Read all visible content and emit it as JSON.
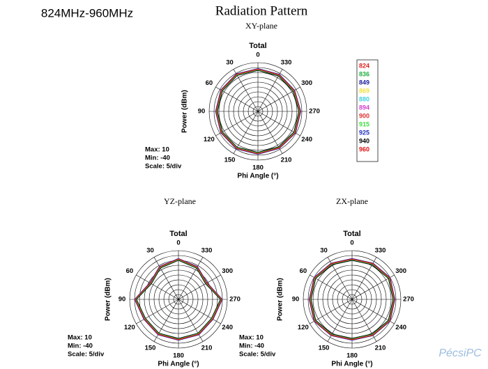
{
  "heading": "824MHz-960MHz",
  "title": "Radiation Pattern",
  "watermark": "PécsiPC",
  "chart_data": [
    {
      "type": "polar",
      "subtitle": "XY-plane",
      "title": "Total",
      "ylabel": "Power  (dBm)",
      "xlabel": "Phi Angle  (°)",
      "annotations": [
        "Max: 10",
        "Min: -40",
        "Scale: 5/div"
      ],
      "legend": true,
      "theta": [
        0,
        30,
        60,
        90,
        120,
        150,
        180,
        210,
        240,
        270,
        300,
        330
      ],
      "rlim": [
        -40,
        10
      ],
      "rticks": [
        -40,
        -35,
        -30,
        -25,
        -20,
        -15,
        -10,
        -5,
        0,
        5,
        10
      ],
      "series": [
        {
          "name": "824",
          "color": "#e02020",
          "values": [
            3,
            3.5,
            3,
            2.5,
            3,
            3.5,
            3,
            3,
            3.5,
            3,
            2.5,
            3
          ]
        },
        {
          "name": "836",
          "color": "#20b040",
          "values": [
            3.5,
            4,
            3.5,
            3,
            3.5,
            4,
            3.5,
            3.5,
            4,
            3.5,
            3,
            3.5
          ]
        },
        {
          "name": "849",
          "color": "#1a1a9a",
          "values": [
            2.5,
            3,
            2.5,
            2,
            2.5,
            3,
            2.5,
            2.5,
            3,
            2.5,
            2,
            2.5
          ]
        },
        {
          "name": "869",
          "color": "#f0e040",
          "values": [
            4,
            4.5,
            4,
            3.5,
            4,
            4.5,
            4,
            4,
            4.5,
            4,
            3.5,
            4
          ]
        },
        {
          "name": "880",
          "color": "#40d0e0",
          "values": [
            2,
            2.5,
            2,
            1.5,
            2,
            2.5,
            2,
            2,
            2.5,
            2,
            1.5,
            2
          ]
        },
        {
          "name": "894",
          "color": "#d040d0",
          "values": [
            3.5,
            4,
            3.5,
            3,
            3.5,
            4,
            3.5,
            3.5,
            4,
            3.5,
            3,
            3.5
          ]
        },
        {
          "name": "900",
          "color": "#e03030",
          "values": [
            3,
            3.5,
            3,
            2.5,
            3,
            3.5,
            3,
            3,
            3.5,
            3,
            2.5,
            3
          ]
        },
        {
          "name": "915",
          "color": "#40e040",
          "values": [
            2.5,
            3,
            2.5,
            2,
            2.5,
            3,
            2.5,
            2.5,
            3,
            2.5,
            2,
            2.5
          ]
        },
        {
          "name": "925",
          "color": "#2030c0",
          "values": [
            4,
            4.5,
            4,
            3.5,
            4,
            4.5,
            4,
            4,
            4.5,
            4,
            3.5,
            4
          ]
        },
        {
          "name": "940",
          "color": "#000000",
          "values": [
            2,
            2.5,
            2,
            1.5,
            2,
            2.5,
            2,
            2,
            2.5,
            2,
            1.5,
            2
          ]
        },
        {
          "name": "960",
          "color": "#e01010",
          "values": [
            3.5,
            4,
            3.5,
            3,
            3.5,
            4,
            3.5,
            3.5,
            4,
            3.5,
            3,
            3.5
          ]
        }
      ]
    },
    {
      "type": "polar",
      "subtitle": "YZ-plane",
      "title": "Total",
      "ylabel": "Power  (dBm)",
      "xlabel": "Phi Angle  (°)",
      "annotations": [
        "Max: 10",
        "Min: -40",
        "Scale: 5/div"
      ],
      "legend": false,
      "theta": [
        0,
        30,
        60,
        90,
        120,
        150,
        180,
        210,
        240,
        270,
        300,
        330
      ],
      "rlim": [
        -40,
        10
      ],
      "rticks": [
        -40,
        -35,
        -30,
        -25,
        -20,
        -15,
        -10,
        -5,
        0,
        5,
        10
      ],
      "series": [
        {
          "color": "#e02020",
          "values": [
            1,
            -2,
            -7,
            4,
            0,
            1,
            1,
            1,
            0,
            4,
            -7,
            -2
          ]
        },
        {
          "color": "#20b040",
          "values": [
            1.5,
            -1.5,
            -6.5,
            4.5,
            0.5,
            1.5,
            1.5,
            1.5,
            0.5,
            4.5,
            -6.5,
            -1.5
          ]
        },
        {
          "color": "#1a1a9a",
          "values": [
            0.5,
            -2.5,
            -7.5,
            3.5,
            -0.5,
            0.5,
            0.5,
            0.5,
            -0.5,
            3.5,
            -7.5,
            -2.5
          ]
        },
        {
          "color": "#f0e040",
          "values": [
            2,
            -1,
            -6,
            5,
            1,
            2,
            2,
            2,
            1,
            5,
            -6,
            -1
          ]
        },
        {
          "color": "#40d0e0",
          "values": [
            0,
            -3,
            -8,
            3,
            -1,
            0,
            0,
            0,
            -1,
            3,
            -8,
            -3
          ]
        },
        {
          "color": "#d040d0",
          "values": [
            1.5,
            -1.5,
            -6.5,
            4.5,
            0.5,
            1.5,
            1.5,
            1.5,
            0.5,
            4.5,
            -6.5,
            -1.5
          ]
        },
        {
          "color": "#e03030",
          "values": [
            1,
            -2,
            -7,
            4,
            0,
            1,
            1,
            1,
            0,
            4,
            -7,
            -2
          ]
        },
        {
          "color": "#40e040",
          "values": [
            0.5,
            -2.5,
            -7.5,
            3.5,
            -0.5,
            0.5,
            0.5,
            0.5,
            -0.5,
            3.5,
            -7.5,
            -2.5
          ]
        },
        {
          "color": "#2030c0",
          "values": [
            2,
            -1,
            -6,
            5,
            1,
            2,
            2,
            2,
            1,
            5,
            -6,
            -1
          ]
        },
        {
          "color": "#000000",
          "values": [
            0,
            -3,
            -8,
            3,
            -1,
            0,
            0,
            0,
            -1,
            3,
            -8,
            -3
          ]
        },
        {
          "color": "#e01010",
          "values": [
            1.5,
            -1.5,
            -6.5,
            4.5,
            0.5,
            1.5,
            1.5,
            1.5,
            0.5,
            4.5,
            -6.5,
            -1.5
          ]
        }
      ]
    },
    {
      "type": "polar",
      "subtitle": "ZX-plane",
      "title": "Total",
      "ylabel": "Power  (dBm)",
      "xlabel": "Phi Angle  (°)",
      "annotations": [
        "Max: 10",
        "Min: -40",
        "Scale: 5/div"
      ],
      "legend": false,
      "theta": [
        0,
        30,
        60,
        90,
        120,
        150,
        180,
        210,
        240,
        270,
        300,
        330
      ],
      "rlim": [
        -40,
        10
      ],
      "rticks": [
        -40,
        -35,
        -30,
        -25,
        -20,
        -15,
        -10,
        -5,
        0,
        5,
        10
      ],
      "series": [
        {
          "color": "#e02020",
          "values": [
            1,
            2,
            4,
            3,
            4,
            2,
            1,
            2,
            4,
            3,
            4,
            2
          ]
        },
        {
          "color": "#20b040",
          "values": [
            1.5,
            2.5,
            4.5,
            3.5,
            4.5,
            2.5,
            1.5,
            2.5,
            4.5,
            3.5,
            4.5,
            2.5
          ]
        },
        {
          "color": "#1a1a9a",
          "values": [
            0.5,
            1.5,
            3.5,
            2.5,
            3.5,
            1.5,
            0.5,
            1.5,
            3.5,
            2.5,
            3.5,
            1.5
          ]
        },
        {
          "color": "#f0e040",
          "values": [
            2,
            3,
            5,
            4,
            5,
            3,
            2,
            3,
            5,
            4,
            5,
            3
          ]
        },
        {
          "color": "#40d0e0",
          "values": [
            0,
            1,
            3,
            2,
            3,
            1,
            0,
            1,
            3,
            2,
            3,
            1
          ]
        },
        {
          "color": "#d040d0",
          "values": [
            1.5,
            2.5,
            4.5,
            3.5,
            4.5,
            2.5,
            1.5,
            2.5,
            4.5,
            3.5,
            4.5,
            2.5
          ]
        },
        {
          "color": "#e03030",
          "values": [
            1,
            2,
            4,
            3,
            4,
            2,
            1,
            2,
            4,
            3,
            4,
            2
          ]
        },
        {
          "color": "#40e040",
          "values": [
            0.5,
            1.5,
            3.5,
            2.5,
            3.5,
            1.5,
            0.5,
            1.5,
            3.5,
            2.5,
            3.5,
            1.5
          ]
        },
        {
          "color": "#2030c0",
          "values": [
            2,
            3,
            5,
            4,
            5,
            3,
            2,
            3,
            5,
            4,
            5,
            3
          ]
        },
        {
          "color": "#000000",
          "values": [
            0,
            1,
            3,
            2,
            3,
            1,
            0,
            1,
            3,
            2,
            3,
            1
          ]
        },
        {
          "color": "#e01010",
          "values": [
            1.5,
            2.5,
            4.5,
            3.5,
            4.5,
            2.5,
            1.5,
            2.5,
            4.5,
            3.5,
            4.5,
            2.5
          ]
        }
      ]
    }
  ]
}
